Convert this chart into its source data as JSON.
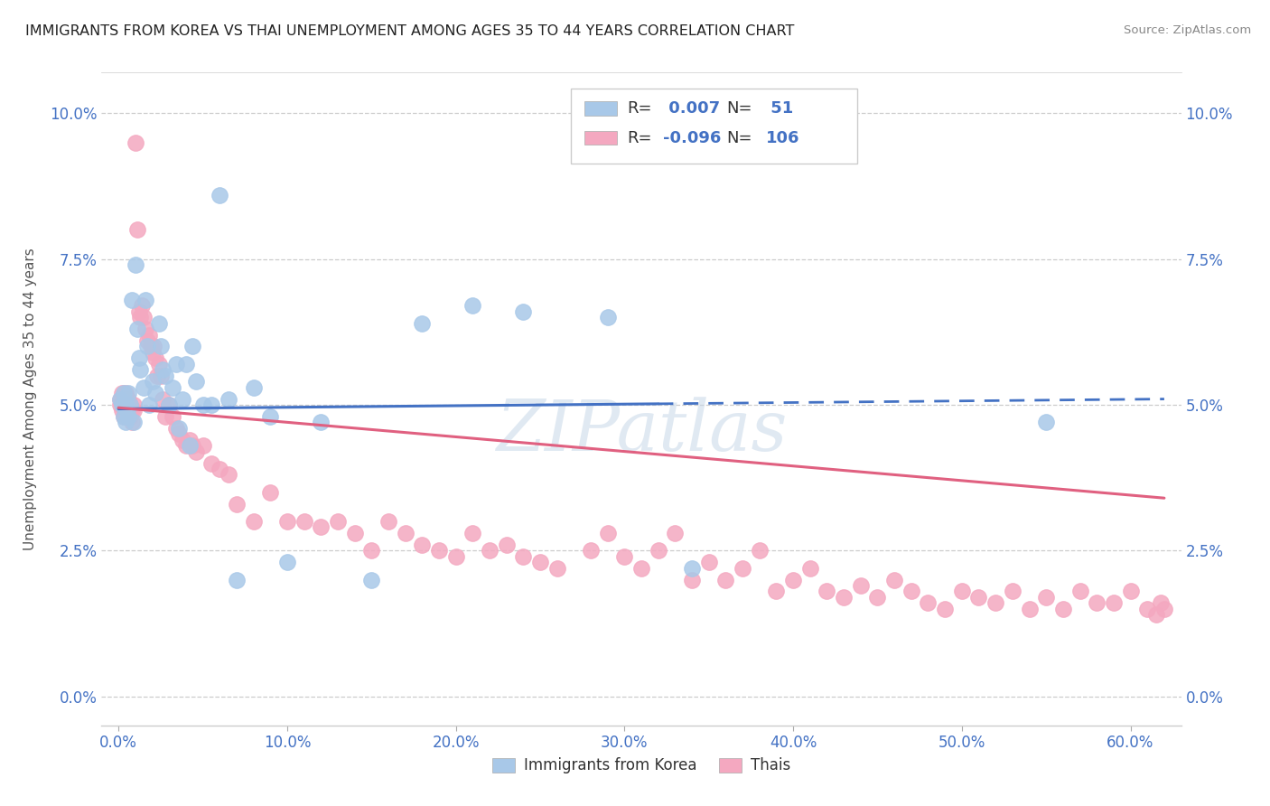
{
  "title": "IMMIGRANTS FROM KOREA VS THAI UNEMPLOYMENT AMONG AGES 35 TO 44 YEARS CORRELATION CHART",
  "source": "Source: ZipAtlas.com",
  "ylabel": "Unemployment Among Ages 35 to 44 years",
  "xlabel_ticks": [
    "0.0%",
    "10.0%",
    "20.0%",
    "30.0%",
    "40.0%",
    "50.0%",
    "60.0%"
  ],
  "xlabel_vals": [
    0.0,
    0.1,
    0.2,
    0.3,
    0.4,
    0.5,
    0.6
  ],
  "ylabel_ticks": [
    "0.0%",
    "2.5%",
    "5.0%",
    "7.5%",
    "10.0%"
  ],
  "ylabel_vals": [
    0.0,
    0.025,
    0.05,
    0.075,
    0.1
  ],
  "xlim": [
    -0.01,
    0.63
  ],
  "ylim": [
    -0.005,
    0.107
  ],
  "korea_R": 0.007,
  "korea_N": 51,
  "thai_R": -0.096,
  "thai_N": 106,
  "korea_color": "#a8c8e8",
  "thai_color": "#f4a8c0",
  "korea_line_color": "#4472c4",
  "thai_line_color": "#e06080",
  "watermark": "ZIPatlas",
  "legend_korea": "Immigrants from Korea",
  "legend_thai": "Thais",
  "korea_x": [
    0.001,
    0.002,
    0.003,
    0.003,
    0.004,
    0.005,
    0.005,
    0.006,
    0.006,
    0.007,
    0.008,
    0.009,
    0.01,
    0.011,
    0.012,
    0.013,
    0.015,
    0.016,
    0.017,
    0.018,
    0.02,
    0.022,
    0.024,
    0.025,
    0.026,
    0.028,
    0.03,
    0.032,
    0.034,
    0.036,
    0.038,
    0.04,
    0.042,
    0.044,
    0.046,
    0.05,
    0.055,
    0.06,
    0.065,
    0.07,
    0.08,
    0.09,
    0.1,
    0.12,
    0.15,
    0.18,
    0.21,
    0.24,
    0.29,
    0.34,
    0.55
  ],
  "korea_y": [
    0.051,
    0.05,
    0.048,
    0.052,
    0.047,
    0.05,
    0.049,
    0.048,
    0.052,
    0.05,
    0.068,
    0.047,
    0.074,
    0.063,
    0.058,
    0.056,
    0.053,
    0.068,
    0.06,
    0.05,
    0.054,
    0.052,
    0.064,
    0.06,
    0.056,
    0.055,
    0.05,
    0.053,
    0.057,
    0.046,
    0.051,
    0.057,
    0.043,
    0.06,
    0.054,
    0.05,
    0.05,
    0.086,
    0.051,
    0.02,
    0.053,
    0.048,
    0.023,
    0.047,
    0.02,
    0.064,
    0.067,
    0.066,
    0.065,
    0.022,
    0.047
  ],
  "thai_x": [
    0.001,
    0.001,
    0.002,
    0.002,
    0.003,
    0.003,
    0.004,
    0.004,
    0.005,
    0.005,
    0.006,
    0.006,
    0.007,
    0.007,
    0.008,
    0.008,
    0.009,
    0.009,
    0.01,
    0.011,
    0.012,
    0.013,
    0.014,
    0.015,
    0.016,
    0.017,
    0.018,
    0.019,
    0.02,
    0.021,
    0.022,
    0.023,
    0.024,
    0.025,
    0.026,
    0.028,
    0.03,
    0.032,
    0.034,
    0.036,
    0.038,
    0.04,
    0.042,
    0.044,
    0.046,
    0.05,
    0.055,
    0.06,
    0.065,
    0.07,
    0.08,
    0.09,
    0.1,
    0.11,
    0.12,
    0.13,
    0.14,
    0.15,
    0.16,
    0.17,
    0.18,
    0.19,
    0.2,
    0.21,
    0.22,
    0.23,
    0.24,
    0.25,
    0.26,
    0.28,
    0.29,
    0.3,
    0.31,
    0.32,
    0.33,
    0.34,
    0.35,
    0.36,
    0.37,
    0.38,
    0.39,
    0.4,
    0.41,
    0.42,
    0.43,
    0.44,
    0.45,
    0.46,
    0.47,
    0.48,
    0.49,
    0.5,
    0.51,
    0.52,
    0.53,
    0.54,
    0.55,
    0.56,
    0.57,
    0.58,
    0.59,
    0.6,
    0.61,
    0.615,
    0.618,
    0.62
  ],
  "thai_y": [
    0.051,
    0.05,
    0.049,
    0.052,
    0.048,
    0.051,
    0.049,
    0.052,
    0.05,
    0.048,
    0.049,
    0.051,
    0.048,
    0.05,
    0.049,
    0.047,
    0.05,
    0.049,
    0.095,
    0.08,
    0.066,
    0.065,
    0.067,
    0.065,
    0.063,
    0.061,
    0.062,
    0.06,
    0.059,
    0.06,
    0.058,
    0.055,
    0.057,
    0.055,
    0.051,
    0.048,
    0.05,
    0.048,
    0.046,
    0.045,
    0.044,
    0.043,
    0.044,
    0.043,
    0.042,
    0.043,
    0.04,
    0.039,
    0.038,
    0.033,
    0.03,
    0.035,
    0.03,
    0.03,
    0.029,
    0.03,
    0.028,
    0.025,
    0.03,
    0.028,
    0.026,
    0.025,
    0.024,
    0.028,
    0.025,
    0.026,
    0.024,
    0.023,
    0.022,
    0.025,
    0.028,
    0.024,
    0.022,
    0.025,
    0.028,
    0.02,
    0.023,
    0.02,
    0.022,
    0.025,
    0.018,
    0.02,
    0.022,
    0.018,
    0.017,
    0.019,
    0.017,
    0.02,
    0.018,
    0.016,
    0.015,
    0.018,
    0.017,
    0.016,
    0.018,
    0.015,
    0.017,
    0.015,
    0.018,
    0.016,
    0.016,
    0.018,
    0.015,
    0.014,
    0.016,
    0.015
  ],
  "korea_trendline_x": [
    0.0,
    0.55
  ],
  "korea_trendline_y": [
    0.0493,
    0.0508
  ],
  "thai_trendline_x": [
    0.0,
    0.62
  ],
  "thai_trendline_y": [
    0.0495,
    0.034
  ]
}
